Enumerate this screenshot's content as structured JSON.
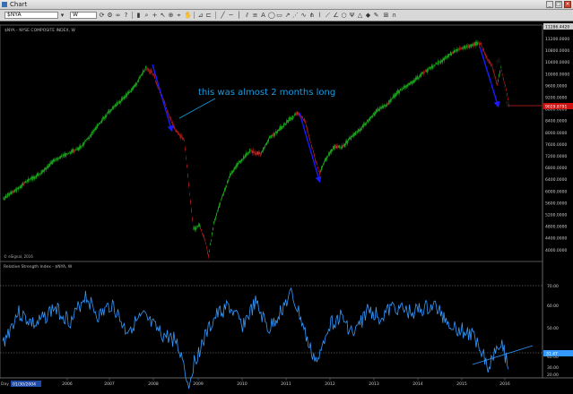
{
  "window": {
    "title": "Chart"
  },
  "toolbar": {
    "symbol": "$NYA",
    "interval": "W"
  },
  "main_pane": {
    "header": "$NYA - NYSE COMPOSITE INDEX, W",
    "watermark": "© eSignal, 2016",
    "annotation": "this was almost 2 months long",
    "price_labels": [
      "11200.0000",
      "10800.0000",
      "10400.0000",
      "10000.0000",
      "9600.0000",
      "9200.0000",
      "8800.0000",
      "8400.0000",
      "8000.0000",
      "7600.0000",
      "7200.0000",
      "6800.0000",
      "6400.0000",
      "6000.0000",
      "5600.0000",
      "5200.0000",
      "4800.0000",
      "4400.0000",
      "4000.0000"
    ],
    "last_price": "9029.8791",
    "top_readout": "11286.4420"
  },
  "indicator_pane": {
    "header": "Relative Strength Index - $NYA, W",
    "labels": [
      "70.00",
      "60.00",
      "50.00",
      "40.00",
      "30.00",
      "20.00"
    ],
    "last_value": "31.47"
  },
  "x_axis": {
    "date_box": "01/30/2004",
    "footer_label": "Day",
    "years": [
      "2006",
      "2007",
      "2008",
      "2009",
      "2010",
      "2011",
      "2012",
      "2013",
      "2014",
      "2015",
      "2016"
    ]
  },
  "colors": {
    "up_candle": "#22cc22",
    "down_candle": "#cc2222",
    "rsi_line": "#3399ff",
    "trend_arrow": "#1a1aff",
    "annotation_text": "#1a9be0",
    "last_price_bg": "#cc1111",
    "support_line": "#cc2222"
  }
}
